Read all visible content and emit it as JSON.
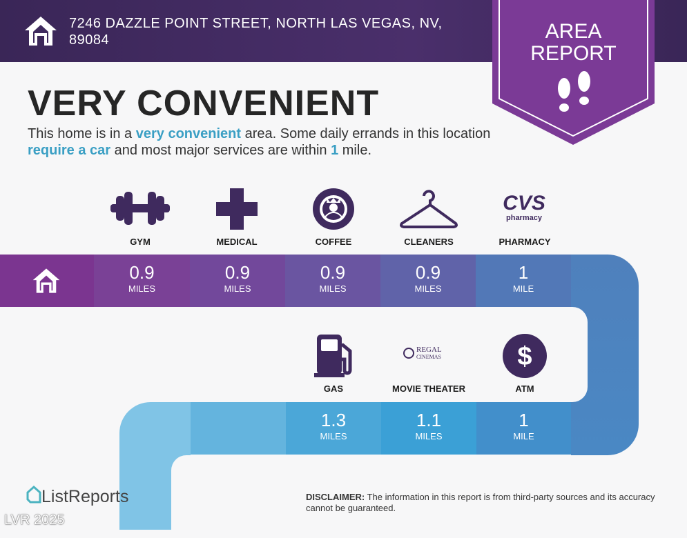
{
  "header": {
    "address": "7246 DAZZLE POINT STREET, NORTH LAS VEGAS, NV, 89084",
    "home_icon": "house-icon"
  },
  "badge": {
    "line1": "AREA",
    "line2": "REPORT",
    "icon": "footprints-icon",
    "color": "#7b3a96"
  },
  "title": "VERY CONVENIENT",
  "description": {
    "p1": "This home is in a ",
    "h1": "very convenient",
    "p2": " area. Some daily errands in this location ",
    "h2": "require a car",
    "p3": " and most major services are within ",
    "h3": "1",
    "p4": " mile."
  },
  "row1": [
    {
      "label": "GYM",
      "icon": "dumbbell-icon",
      "distance": "0.9",
      "unit": "MILES",
      "color": "#7a4196"
    },
    {
      "label": "MEDICAL",
      "icon": "medical-cross-icon",
      "distance": "0.9",
      "unit": "MILES",
      "color": "#72489b"
    },
    {
      "label": "COFFEE",
      "icon": "starbucks-logo",
      "logo_text": "STARBUCKS",
      "distance": "0.9",
      "unit": "MILES",
      "color": "#6a55a1"
    },
    {
      "label": "CLEANERS",
      "icon": "hanger-icon",
      "distance": "0.9",
      "unit": "MILES",
      "color": "#6063a9"
    },
    {
      "label": "PHARMACY",
      "icon": "cvs-pharmacy-logo",
      "logo_text": "CVS pharmacy",
      "distance": "1",
      "unit": "MILE",
      "color": "#5278b7"
    }
  ],
  "row2": [
    {
      "label": "GAS",
      "icon": "gas-pump-icon",
      "distance": "1.3",
      "unit": "MILES",
      "color": "#4ba7d8"
    },
    {
      "label": "MOVIE THEATER",
      "icon": "regal-cinemas-logo",
      "logo_text": "REGAL CINEMAS",
      "distance": "1.1",
      "unit": "MILES",
      "color": "#3ba0d6"
    },
    {
      "label": "ATM",
      "icon": "dollar-icon",
      "distance": "1",
      "unit": "MILE",
      "color": "#428fcb"
    }
  ],
  "footer": {
    "brand": "ListReports",
    "watermark": "LVR 2025",
    "disclaimer_label": "DISCLAIMER:",
    "disclaimer_text": " The information in this report is from third-party sources and its accuracy cannot be guaranteed."
  }
}
